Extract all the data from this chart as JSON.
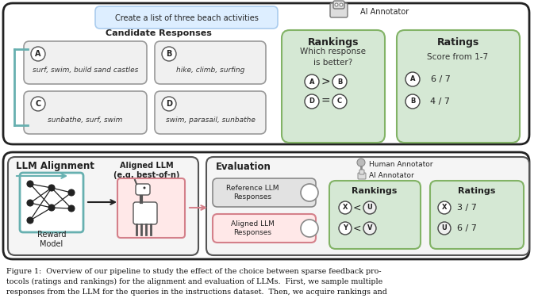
{
  "bg_color": "#ffffff",
  "light_blue_bg": "#ddeeff",
  "light_blue_border": "#aaccee",
  "green_box_bg": "#d5e8d4",
  "green_box_border": "#82b366",
  "teal_border": "#67b0b0",
  "pink_border": "#d4808a",
  "pink_bg": "#ffe0e0",
  "gray_box_bg": "#e8e8e8",
  "gray_box_border": "#888888",
  "outer_border": "#222222",
  "figure_caption_line1": "Figure 1:  Overview of our pipeline to study the effect of the choice between sparse feedback pro-",
  "figure_caption_line2": "tocols (ratings and rankings) for the alignment and evaluation of LLMs.  First, we sample multiple",
  "figure_caption_line3": "responses from the LLM for the queries in the instructions dataset.  Then, we acquire rankings and",
  "top_prompt_text": "Create a list of three beach activities",
  "candidate_responses_title": "Candidate Responses",
  "resp_A_text": "surf, swim, build sand castles",
  "resp_B_text": "hike, climb, surfing",
  "resp_C_text": "sunbathe, surf, swim",
  "resp_D_text": "swim, parasail, sunbathe",
  "ai_annotator_label": "AI Annotator",
  "rankings_title": "Rankings",
  "rankings_question": "Which response\nis better?",
  "ratings_title": "Ratings",
  "ratings_question": "Score from 1-7",
  "llm_alignment_title": "LLM Alignment",
  "aligned_llm_label": "Aligned LLM\n(e.g. best-of-n)",
  "reward_model_label": "Reward\nModel",
  "evaluation_title": "Evaluation",
  "human_annotator_label": "Human Annotator",
  "ai_annotator_label2": "AI Annotator",
  "ref_llm_label": "Reference LLM\nResponses",
  "aligned_llm_resp_label": "Aligned LLM\nResponses",
  "eval_rankings_title": "Rankings",
  "eval_ratings_title": "Ratings"
}
